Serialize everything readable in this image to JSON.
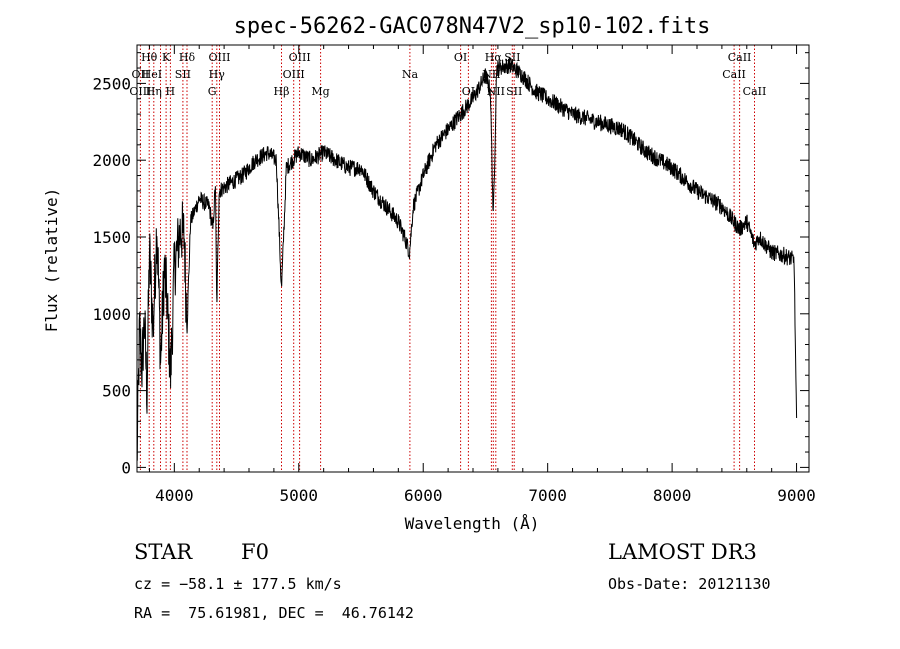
{
  "chart_data": {
    "type": "line",
    "title": "spec-56262-GAC078N47V2_sp10-102.fits",
    "xlabel": "Wavelength (Å)",
    "ylabel": "Flux (relative)",
    "xlim": [
      3700,
      9100
    ],
    "ylim": [
      -30,
      2750
    ],
    "x_ticks": [
      4000,
      5000,
      6000,
      7000,
      8000,
      9000
    ],
    "y_ticks": [
      0,
      500,
      1000,
      1500,
      2000,
      2500
    ],
    "grid": false,
    "series_color": "#000000",
    "line_marker_color": "#cc0000",
    "spectrum_anchors": [
      [
        3700,
        20
      ],
      [
        3720,
        900
      ],
      [
        3740,
        650
      ],
      [
        3760,
        950
      ],
      [
        3780,
        500
      ],
      [
        3800,
        1400
      ],
      [
        3830,
        900
      ],
      [
        3860,
        1600
      ],
      [
        3890,
        700
      ],
      [
        3920,
        1300
      ],
      [
        3940,
        1100
      ],
      [
        3970,
        600
      ],
      [
        4000,
        1300
      ],
      [
        4050,
        1550
      ],
      [
        4080,
        1500
      ],
      [
        4102,
        900
      ],
      [
        4130,
        1600
      ],
      [
        4200,
        1750
      ],
      [
        4280,
        1700
      ],
      [
        4310,
        1550
      ],
      [
        4330,
        1850
      ],
      [
        4341,
        1050
      ],
      [
        4360,
        1800
      ],
      [
        4450,
        1850
      ],
      [
        4550,
        1900
      ],
      [
        4650,
        2000
      ],
      [
        4750,
        2050
      ],
      [
        4820,
        2000
      ],
      [
        4861,
        1150
      ],
      [
        4900,
        1950
      ],
      [
        5000,
        2050
      ],
      [
        5100,
        2000
      ],
      [
        5200,
        2050
      ],
      [
        5300,
        2000
      ],
      [
        5400,
        1950
      ],
      [
        5500,
        1950
      ],
      [
        5600,
        1800
      ],
      [
        5700,
        1700
      ],
      [
        5800,
        1600
      ],
      [
        5850,
        1500
      ],
      [
        5890,
        1400
      ],
      [
        5920,
        1700
      ],
      [
        6000,
        1900
      ],
      [
        6100,
        2100
      ],
      [
        6200,
        2200
      ],
      [
        6300,
        2300
      ],
      [
        6400,
        2400
      ],
      [
        6500,
        2550
      ],
      [
        6540,
        2450
      ],
      [
        6563,
        1600
      ],
      [
        6590,
        2600
      ],
      [
        6700,
        2620
      ],
      [
        6800,
        2550
      ],
      [
        6900,
        2450
      ],
      [
        7000,
        2400
      ],
      [
        7200,
        2300
      ],
      [
        7400,
        2250
      ],
      [
        7600,
        2200
      ],
      [
        7800,
        2050
      ],
      [
        8000,
        1950
      ],
      [
        8200,
        1800
      ],
      [
        8400,
        1700
      ],
      [
        8542,
        1550
      ],
      [
        8600,
        1600
      ],
      [
        8662,
        1450
      ],
      [
        8700,
        1500
      ],
      [
        8800,
        1400
      ],
      [
        8900,
        1380
      ],
      [
        8980,
        1350
      ],
      [
        9000,
        300
      ]
    ],
    "annotations": [
      {
        "label": "Hθ",
        "x": 3798,
        "row": 0
      },
      {
        "label": "OII",
        "x": 3727,
        "row": 1
      },
      {
        "label": "OIII",
        "x": 3727,
        "row": 2
      },
      {
        "label": "K",
        "x": 3934,
        "row": 0
      },
      {
        "label": "HeI",
        "x": 3820,
        "row": 1
      },
      {
        "label": "Hη",
        "x": 3835,
        "row": 2
      },
      {
        "label": "Hδ",
        "x": 4102,
        "row": 0
      },
      {
        "label": "SII",
        "x": 4069,
        "row": 1
      },
      {
        "label": "H",
        "x": 3968,
        "row": 2
      },
      {
        "label": "OIII",
        "x": 4363,
        "row": 0
      },
      {
        "label": "Hγ",
        "x": 4341,
        "row": 1
      },
      {
        "label": "G",
        "x": 4304,
        "row": 2
      },
      {
        "label": "OIII",
        "x": 5007,
        "row": 0
      },
      {
        "label": "OIII",
        "x": 4959,
        "row": 1
      },
      {
        "label": "Hβ",
        "x": 4861,
        "row": 2
      },
      {
        "label": "Mg",
        "x": 5175,
        "row": 2
      },
      {
        "label": "Na",
        "x": 5893,
        "row": 1
      },
      {
        "label": "OI",
        "x": 6300,
        "row": 0
      },
      {
        "label": "OI",
        "x": 6363,
        "row": 2
      },
      {
        "label": "Hα",
        "x": 6563,
        "row": 0
      },
      {
        "label": "SII",
        "x": 6716,
        "row": 0
      },
      {
        "label": "NII",
        "x": 6548,
        "row": 1
      },
      {
        "label": "NII",
        "x": 6583,
        "row": 2
      },
      {
        "label": "SII",
        "x": 6731,
        "row": 2
      },
      {
        "label": "CaII",
        "x": 8542,
        "row": 0
      },
      {
        "label": "CaII",
        "x": 8498,
        "row": 1
      },
      {
        "label": "CaII",
        "x": 8662,
        "row": 2
      }
    ],
    "marker_lines": [
      3727,
      3798,
      3835,
      3889,
      3934,
      3968,
      4069,
      4102,
      4304,
      4341,
      4363,
      4861,
      4959,
      5007,
      5175,
      5893,
      6300,
      6363,
      6548,
      6563,
      6583,
      6716,
      6731,
      8498,
      8542,
      8662
    ]
  },
  "info": {
    "class": "STAR",
    "subclass": "F0",
    "survey": "LAMOST DR3",
    "cz": "cz = −58.1 ± 177.5 km/s",
    "obs_date": "Obs-Date: 20121130",
    "radec": "RA =  75.61981, DEC =  46.76142"
  }
}
